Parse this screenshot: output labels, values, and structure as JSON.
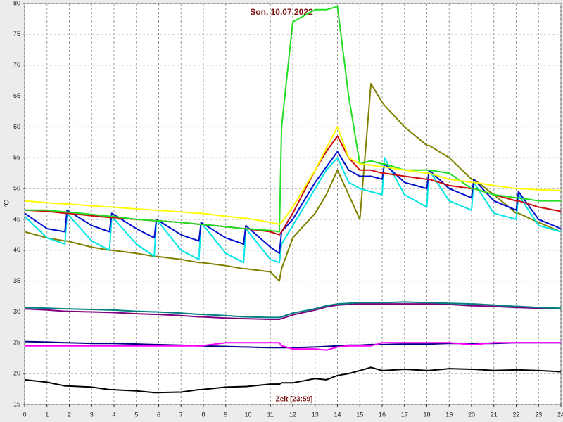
{
  "chart_data": {
    "type": "line",
    "title": "Son, 10.07.2022",
    "x_label": "Zeit [23:59]",
    "y_label": "°C",
    "grid": true,
    "xlim": [
      0,
      24
    ],
    "ylim": [
      15,
      80
    ],
    "xticks": [
      0,
      1,
      2,
      3,
      4,
      5,
      6,
      7,
      8,
      9,
      10,
      11,
      12,
      13,
      14,
      15,
      16,
      17,
      18,
      19,
      20,
      21,
      22,
      23,
      24
    ],
    "yticks": [
      15,
      20,
      25,
      30,
      35,
      40,
      45,
      50,
      55,
      60,
      65,
      70,
      75,
      80
    ],
    "x": [
      0,
      1,
      1.8,
      1.9,
      3,
      3.8,
      3.9,
      5,
      5.8,
      5.9,
      7,
      7.8,
      7.9,
      9,
      9.8,
      9.9,
      11,
      11.4,
      11.5,
      12,
      13,
      13.5,
      14,
      14.5,
      15,
      15.5,
      16,
      16.1,
      17,
      18,
      18.1,
      19,
      20,
      20.1,
      21,
      22,
      22.1,
      23,
      24
    ],
    "series": [
      {
        "color": "#000000",
        "values": [
          19,
          18.6,
          18,
          18,
          17.8,
          17.4,
          17.4,
          17.2,
          16.9,
          16.9,
          17,
          17.4,
          17.4,
          17.8,
          17.9,
          17.9,
          18.3,
          18.3,
          18.5,
          18.5,
          19.2,
          19,
          19.7,
          20,
          20.5,
          21,
          20.5,
          20.5,
          20.7,
          20.5,
          20.5,
          20.8,
          20.7,
          20.7,
          20.5,
          20.6,
          20.6,
          20.5,
          20.3
        ]
      },
      {
        "color": "#000080",
        "values": [
          25.2,
          25.1,
          25,
          25,
          24.9,
          24.9,
          24.9,
          24.8,
          24.7,
          24.7,
          24.6,
          24.5,
          24.5,
          24.4,
          24.3,
          24.3,
          24.2,
          24.2,
          24.2,
          24.2,
          24.3,
          24.4,
          24.5,
          24.6,
          24.6,
          24.7,
          24.7,
          24.7,
          24.8,
          24.8,
          24.8,
          24.9,
          24.9,
          24.9,
          24.9,
          25,
          25,
          25,
          25
        ]
      },
      {
        "color": "#ff00ff",
        "values": [
          24.5,
          24.5,
          24.5,
          24.5,
          24.5,
          24.5,
          24.5,
          24.5,
          24.5,
          24.5,
          24.5,
          24.5,
          24.5,
          25,
          25,
          25,
          25,
          25,
          24.5,
          24,
          24,
          23.8,
          24.3,
          24.5,
          24.5,
          24.5,
          25,
          25,
          25,
          25,
          25,
          25,
          24.7,
          24.7,
          25,
          25,
          25,
          25,
          25
        ]
      },
      {
        "color": "#800080",
        "values": [
          30.5,
          30.3,
          30.1,
          30.1,
          30,
          29.9,
          29.9,
          29.7,
          29.6,
          29.6,
          29.4,
          29.2,
          29.2,
          29,
          28.9,
          28.9,
          28.8,
          28.8,
          28.9,
          29.5,
          30.3,
          30.8,
          31.1,
          31.2,
          31.3,
          31.3,
          31.3,
          31.3,
          31.3,
          31.3,
          31.3,
          31.2,
          31,
          31,
          30.9,
          30.7,
          30.7,
          30.6,
          30.5
        ]
      },
      {
        "color": "#008080",
        "values": [
          30.7,
          30.6,
          30.5,
          30.5,
          30.4,
          30.3,
          30.3,
          30.1,
          30,
          30,
          29.8,
          29.6,
          29.6,
          29.4,
          29.2,
          29.2,
          29.1,
          29.1,
          29.2,
          29.8,
          30.5,
          31,
          31.3,
          31.4,
          31.5,
          31.5,
          31.5,
          31.5,
          31.6,
          31.5,
          31.5,
          31.4,
          31.3,
          31.3,
          31.1,
          30.9,
          30.9,
          30.7,
          30.6
        ]
      },
      {
        "color": "#808000",
        "values": [
          43,
          42,
          41.5,
          41.5,
          40.5,
          40,
          40,
          39.5,
          39,
          39,
          38.5,
          38,
          38,
          37.5,
          37,
          37,
          36.5,
          35,
          37,
          42,
          46,
          49,
          53,
          49,
          45,
          67,
          64,
          63.5,
          60,
          57,
          57,
          55,
          51.5,
          51.5,
          49,
          46,
          46,
          44.5,
          43
        ]
      },
      {
        "color": "#00e5e5",
        "values": [
          45.5,
          42,
          41,
          46,
          41.5,
          40,
          45.5,
          41,
          39,
          45,
          40,
          38.5,
          44.5,
          39.5,
          38,
          43.5,
          38.5,
          38,
          41,
          44,
          50,
          53,
          55,
          51,
          50,
          49.5,
          49,
          55,
          49,
          47,
          53,
          48,
          46.5,
          51,
          46,
          45,
          49,
          44,
          43
        ]
      },
      {
        "color": "#0010d0",
        "values": [
          46,
          43.5,
          43,
          46.5,
          44,
          43,
          46,
          43.5,
          42,
          45,
          42.5,
          41.5,
          44.5,
          42,
          41,
          44,
          40.5,
          39.5,
          43,
          45,
          51,
          53.5,
          56,
          53,
          52,
          52,
          51.5,
          54,
          51,
          50,
          53,
          50,
          48.5,
          51.5,
          48,
          46.5,
          49.5,
          45,
          43.5
        ]
      },
      {
        "color": "#cc1010",
        "values": [
          46.5,
          46.3,
          46,
          46,
          45.6,
          45.3,
          45.3,
          45,
          44.8,
          44.8,
          44.5,
          44.2,
          44.2,
          43.8,
          43.5,
          43.5,
          43,
          42.5,
          43,
          46,
          53,
          56,
          58.5,
          55,
          53,
          53,
          52.5,
          52.5,
          52,
          51.5,
          51.5,
          50.5,
          50,
          50,
          49,
          48,
          48,
          47,
          46.3
        ]
      },
      {
        "color": "#22dd22",
        "values": [
          46.5,
          46.5,
          46.2,
          46.2,
          45.8,
          45.5,
          45.5,
          45,
          44.8,
          44.8,
          44.5,
          44.2,
          44.2,
          43.8,
          43.5,
          43.5,
          43.2,
          43,
          60,
          77,
          79,
          79,
          79.5,
          65,
          54,
          54.5,
          54,
          54,
          53,
          53,
          53,
          52.5,
          50,
          50,
          49,
          48.5,
          48.5,
          48,
          48
        ]
      },
      {
        "color": "#ffff00",
        "values": [
          48,
          47.7,
          47.5,
          47.5,
          47.2,
          47,
          47,
          46.7,
          46.5,
          46.5,
          46.2,
          46,
          46,
          45.5,
          45.2,
          45.2,
          44.5,
          44.2,
          44.5,
          47,
          53,
          56.5,
          60,
          55,
          54,
          53.8,
          53.5,
          53.5,
          53,
          52.5,
          52.5,
          51.5,
          51,
          51,
          50.5,
          50,
          50,
          49.8,
          49.7
        ]
      }
    ]
  }
}
